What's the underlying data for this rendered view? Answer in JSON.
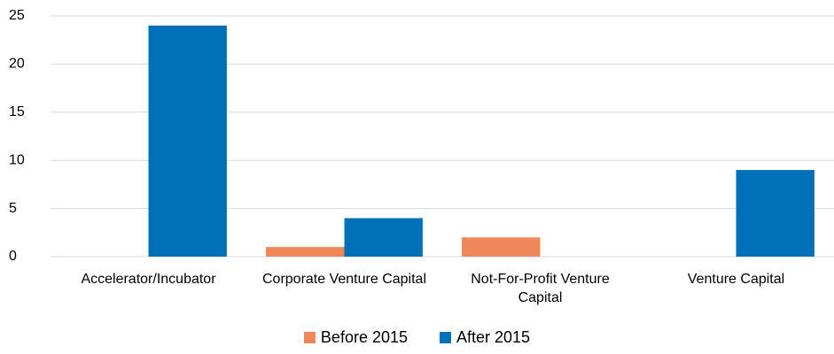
{
  "chart_data": {
    "type": "bar",
    "categories": [
      "Accelerator/Incubator",
      "Corporate Venture Capital",
      "Not-For-Profit Venture Capital",
      "Venture Capital"
    ],
    "series": [
      {
        "name": "Before 2015",
        "color": "#f0875a",
        "values": [
          0,
          1,
          2,
          0
        ]
      },
      {
        "name": "After 2015",
        "color": "#0070b8",
        "values": [
          24,
          4,
          0,
          9
        ]
      }
    ],
    "ylim": [
      0,
      25
    ],
    "yticks": [
      0,
      5,
      10,
      15,
      20,
      25
    ],
    "grid": true,
    "legend": "bottom"
  }
}
